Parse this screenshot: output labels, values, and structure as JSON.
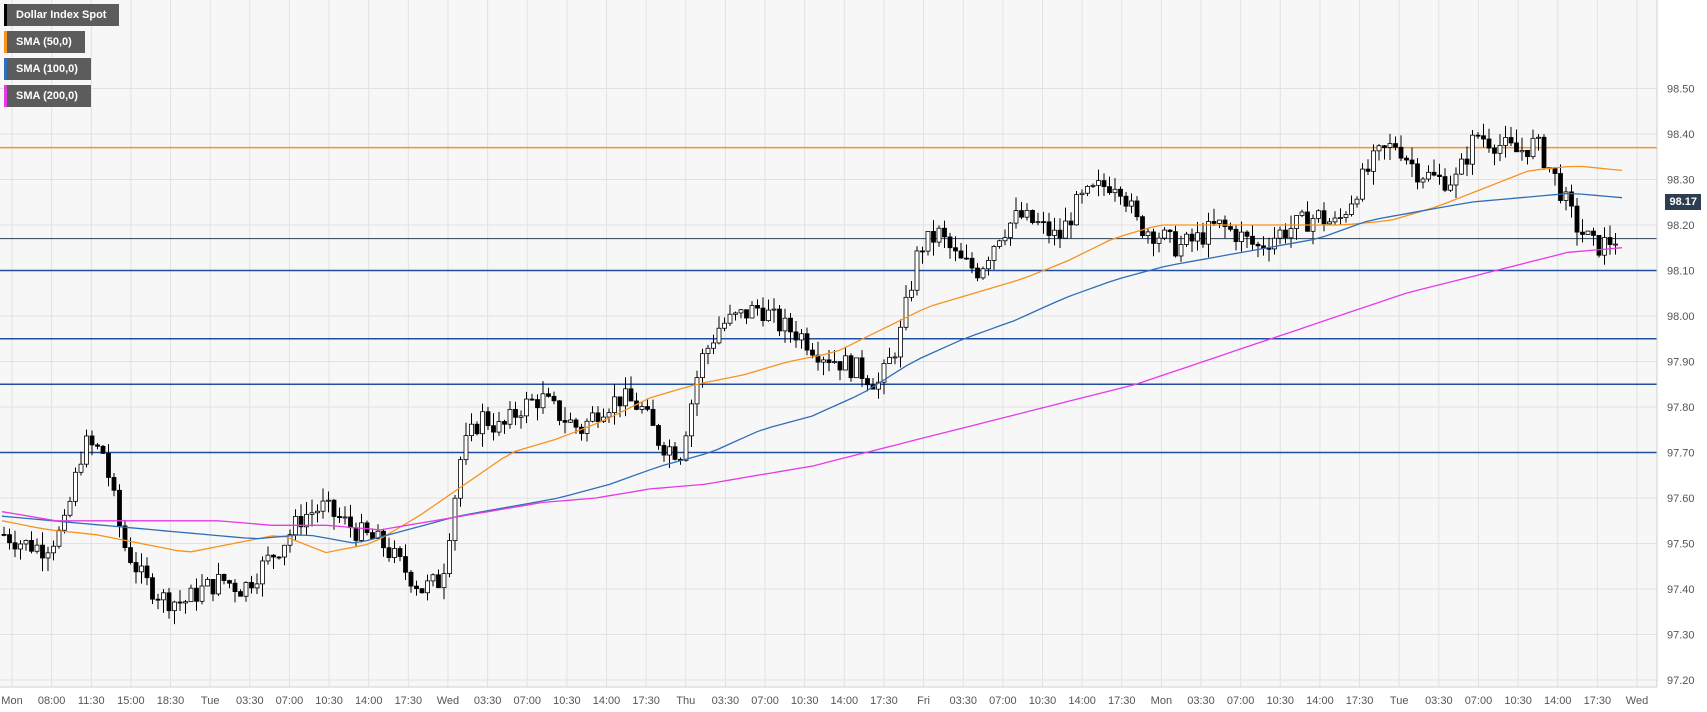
{
  "legend": {
    "symbol": "Dollar Index Spot",
    "sma50": "SMA (50,0)",
    "sma100": "SMA (100,0)",
    "sma200": "SMA (200,0)"
  },
  "colors": {
    "symbol": "#000000",
    "sma50": "#f7931e",
    "sma100": "#2f6fb8",
    "sma200": "#e63ae6",
    "resistance": "#f7931e",
    "support": "#1f4e9e",
    "price_line": "#2c3e50"
  },
  "current_price": "98.17",
  "chart_data": {
    "type": "candlestick",
    "title": "",
    "grid": true,
    "ylim": [
      97.2,
      98.55
    ],
    "y_ticks": [
      "97.20",
      "97.30",
      "97.40",
      "97.50",
      "97.60",
      "97.70",
      "97.80",
      "97.90",
      "98.00",
      "98.10",
      "98.20",
      "98.30",
      "98.40",
      "98.50"
    ],
    "x_ticks": [
      "Mon",
      "08:00",
      "11:30",
      "15:00",
      "18:30",
      "Tue",
      "03:30",
      "07:00",
      "10:30",
      "14:00",
      "17:30",
      "Wed",
      "03:30",
      "07:00",
      "10:30",
      "14:00",
      "17:30",
      "Thu",
      "03:30",
      "07:00",
      "10:30",
      "14:00",
      "17:30",
      "Fri",
      "03:30",
      "07:00",
      "10:30",
      "14:00",
      "17:30",
      "Mon",
      "03:30",
      "07:00",
      "10:30",
      "14:00",
      "17:30",
      "Tue",
      "03:30",
      "07:00",
      "10:30",
      "14:00",
      "17:30",
      "Wed"
    ],
    "close_path": [
      97.52,
      97.5,
      97.49,
      97.53,
      97.72,
      97.7,
      97.5,
      97.42,
      97.38,
      97.37,
      97.4,
      97.42,
      97.4,
      97.45,
      97.5,
      97.56,
      97.58,
      97.55,
      97.52,
      97.5,
      97.45,
      97.4,
      97.42,
      97.7,
      97.78,
      97.75,
      97.8,
      97.82,
      97.78,
      97.75,
      97.8,
      97.82,
      97.8,
      97.72,
      97.7,
      97.9,
      97.98,
      98.0,
      98.02,
      97.98,
      97.96,
      97.92,
      97.9,
      97.88,
      97.85,
      97.95,
      98.15,
      98.18,
      98.12,
      98.1,
      98.18,
      98.22,
      98.2,
      98.17,
      98.25,
      98.28,
      98.3,
      98.2,
      98.18,
      98.15,
      98.17,
      98.2,
      98.18,
      98.15,
      98.18,
      98.2,
      98.22,
      98.2,
      98.28,
      98.35,
      98.38,
      98.32,
      98.3,
      98.3,
      98.4,
      98.38,
      98.36,
      98.38,
      98.3,
      98.2,
      98.15,
      98.17
    ],
    "series": [
      {
        "name": "SMA (50,0)",
        "path": [
          97.55,
          97.53,
          97.52,
          97.5,
          97.48,
          97.5,
          97.52,
          97.48,
          97.5,
          97.56,
          97.63,
          97.7,
          97.73,
          97.77,
          97.82,
          97.85,
          97.87,
          97.9,
          97.92,
          97.97,
          98.02,
          98.05,
          98.08,
          98.12,
          98.17,
          98.2,
          98.2,
          98.2,
          98.2,
          98.2,
          98.21,
          98.24,
          98.28,
          98.32,
          98.33,
          98.32
        ]
      },
      {
        "name": "SMA (100,0)",
        "path": [
          97.56,
          97.55,
          97.54,
          97.53,
          97.52,
          97.51,
          97.52,
          97.5,
          97.53,
          97.56,
          97.58,
          97.6,
          97.63,
          97.67,
          97.7,
          97.75,
          97.78,
          97.83,
          97.9,
          97.95,
          97.99,
          98.04,
          98.08,
          98.11,
          98.13,
          98.15,
          98.17,
          98.21,
          98.23,
          98.25,
          98.26,
          98.27,
          98.26
        ]
      },
      {
        "name": "SMA (200,0)",
        "path": [
          97.57,
          97.55,
          97.55,
          97.55,
          97.55,
          97.54,
          97.54,
          97.53,
          97.55,
          97.57,
          97.59,
          97.6,
          97.62,
          97.63,
          97.65,
          97.67,
          97.7,
          97.73,
          97.76,
          97.79,
          97.82,
          97.85,
          97.89,
          97.93,
          97.97,
          98.01,
          98.05,
          98.08,
          98.11,
          98.14,
          98.15
        ]
      }
    ],
    "horizontal_levels": [
      {
        "kind": "resistance",
        "value": 98.37
      },
      {
        "kind": "support",
        "value": 98.1
      },
      {
        "kind": "support",
        "value": 97.95
      },
      {
        "kind": "support",
        "value": 97.85
      },
      {
        "kind": "support",
        "value": 97.7
      }
    ]
  }
}
